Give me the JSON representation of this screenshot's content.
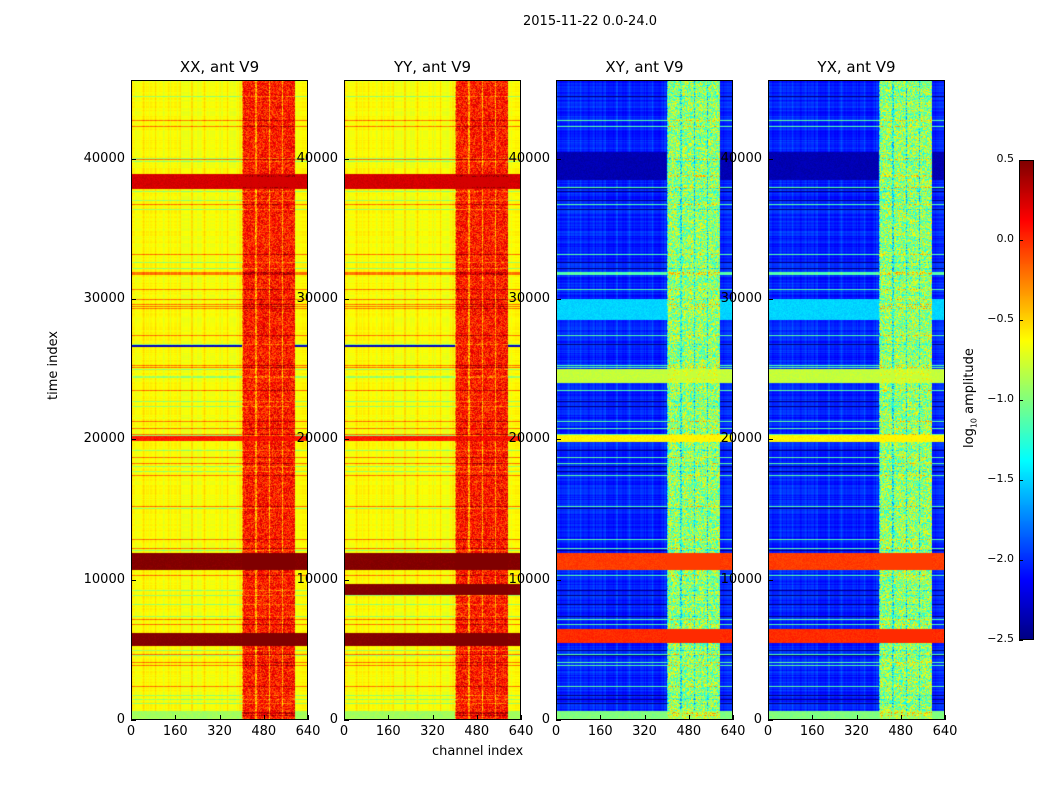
{
  "chart_data": {
    "type": "heatmap",
    "title": "2015-11-22 0.0-24.0",
    "xlabel": "channel index",
    "ylabel": "time index",
    "xlim": [
      0,
      640
    ],
    "ylim": [
      0,
      45600
    ],
    "xticks": [
      "0",
      "160",
      "320",
      "480",
      "640"
    ],
    "xtick_values": [
      0,
      160,
      320,
      480,
      640
    ],
    "yticks": [
      "0",
      "10000",
      "20000",
      "30000",
      "40000"
    ],
    "ytick_values": [
      0,
      10000,
      20000,
      30000,
      40000
    ],
    "colormap": "jet",
    "colorbar": {
      "label_main": "log",
      "label_sub": "10",
      "label_rest": " amplitude",
      "range": [
        -2.5,
        0.5
      ],
      "ticks": [
        "0.5",
        "0.0",
        "−0.5",
        "−1.0",
        "−1.5",
        "−2.0",
        "−2.5"
      ],
      "tick_values": [
        0.5,
        0.0,
        -0.5,
        -1.0,
        -1.5,
        -2.0,
        -2.5
      ]
    },
    "panels": [
      {
        "title": "XX, ant V9",
        "base": -0.65,
        "rfi_channels": [
          400,
          590
        ],
        "rfi_value": 0.05,
        "bands": [
          [
            10700,
            11900,
            0.5
          ],
          [
            5250,
            6200,
            0.5
          ],
          [
            37800,
            38900,
            0.25
          ],
          [
            19900,
            20200,
            0.05
          ],
          [
            0,
            650,
            -0.9
          ],
          [
            26600,
            26750,
            -2.3
          ]
        ]
      },
      {
        "title": "YY, ant V9",
        "base": -0.65,
        "rfi_channels": [
          400,
          590
        ],
        "rfi_value": 0.05,
        "bands": [
          [
            10700,
            11900,
            0.5
          ],
          [
            8900,
            9700,
            0.5
          ],
          [
            5300,
            6200,
            0.5
          ],
          [
            37800,
            38900,
            0.25
          ],
          [
            19900,
            20200,
            0.05
          ],
          [
            0,
            650,
            -0.9
          ],
          [
            26600,
            26750,
            -2.3
          ]
        ]
      },
      {
        "title": "XY, ant V9",
        "base": -2.05,
        "rfi_channels": [
          400,
          590
        ],
        "rfi_value": -0.95,
        "bands": [
          [
            10700,
            11900,
            -0.05
          ],
          [
            5500,
            6500,
            0.0
          ],
          [
            19800,
            20300,
            -0.6
          ],
          [
            28500,
            30000,
            -1.5
          ],
          [
            24000,
            25000,
            -0.8
          ],
          [
            38500,
            40500,
            -2.35
          ],
          [
            0,
            650,
            -1.0
          ]
        ]
      },
      {
        "title": "YX, ant V9",
        "base": -2.05,
        "rfi_channels": [
          400,
          590
        ],
        "rfi_value": -0.95,
        "bands": [
          [
            10700,
            11900,
            -0.05
          ],
          [
            5500,
            6500,
            0.0
          ],
          [
            19800,
            20300,
            -0.6
          ],
          [
            28500,
            30000,
            -1.5
          ],
          [
            24000,
            25000,
            -0.8
          ],
          [
            38500,
            40500,
            -2.35
          ],
          [
            0,
            650,
            -1.0
          ]
        ]
      }
    ]
  }
}
